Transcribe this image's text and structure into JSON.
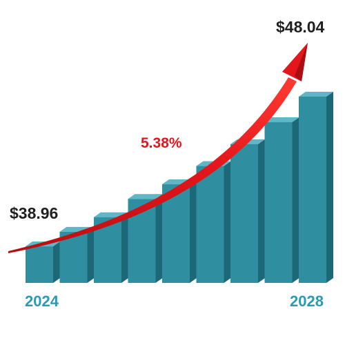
{
  "chart_data": {
    "type": "bar",
    "title": "",
    "xlabel": "",
    "ylabel": "",
    "bar_count": 9,
    "start_year_label": "2024",
    "end_year_label": "2028",
    "start_value_label": "$38.96",
    "end_value_label": "$48.04",
    "growth_rate_label": "5.38%",
    "values": [
      1.0,
      1.4,
      1.8,
      2.3,
      2.7,
      3.2,
      3.8,
      4.4,
      5.1
    ],
    "grid": false,
    "legend": "none"
  },
  "colors": {
    "bar_front": "#2f8fa1",
    "bar_side": "#1d6878",
    "bar_top": "#5fb6c6",
    "arrow": "#e3161b",
    "arrow_dark": "#a80e12",
    "year_text": "#2a9bb5",
    "growth_text": "#e3161b",
    "value_text": "#1f1f1f"
  }
}
